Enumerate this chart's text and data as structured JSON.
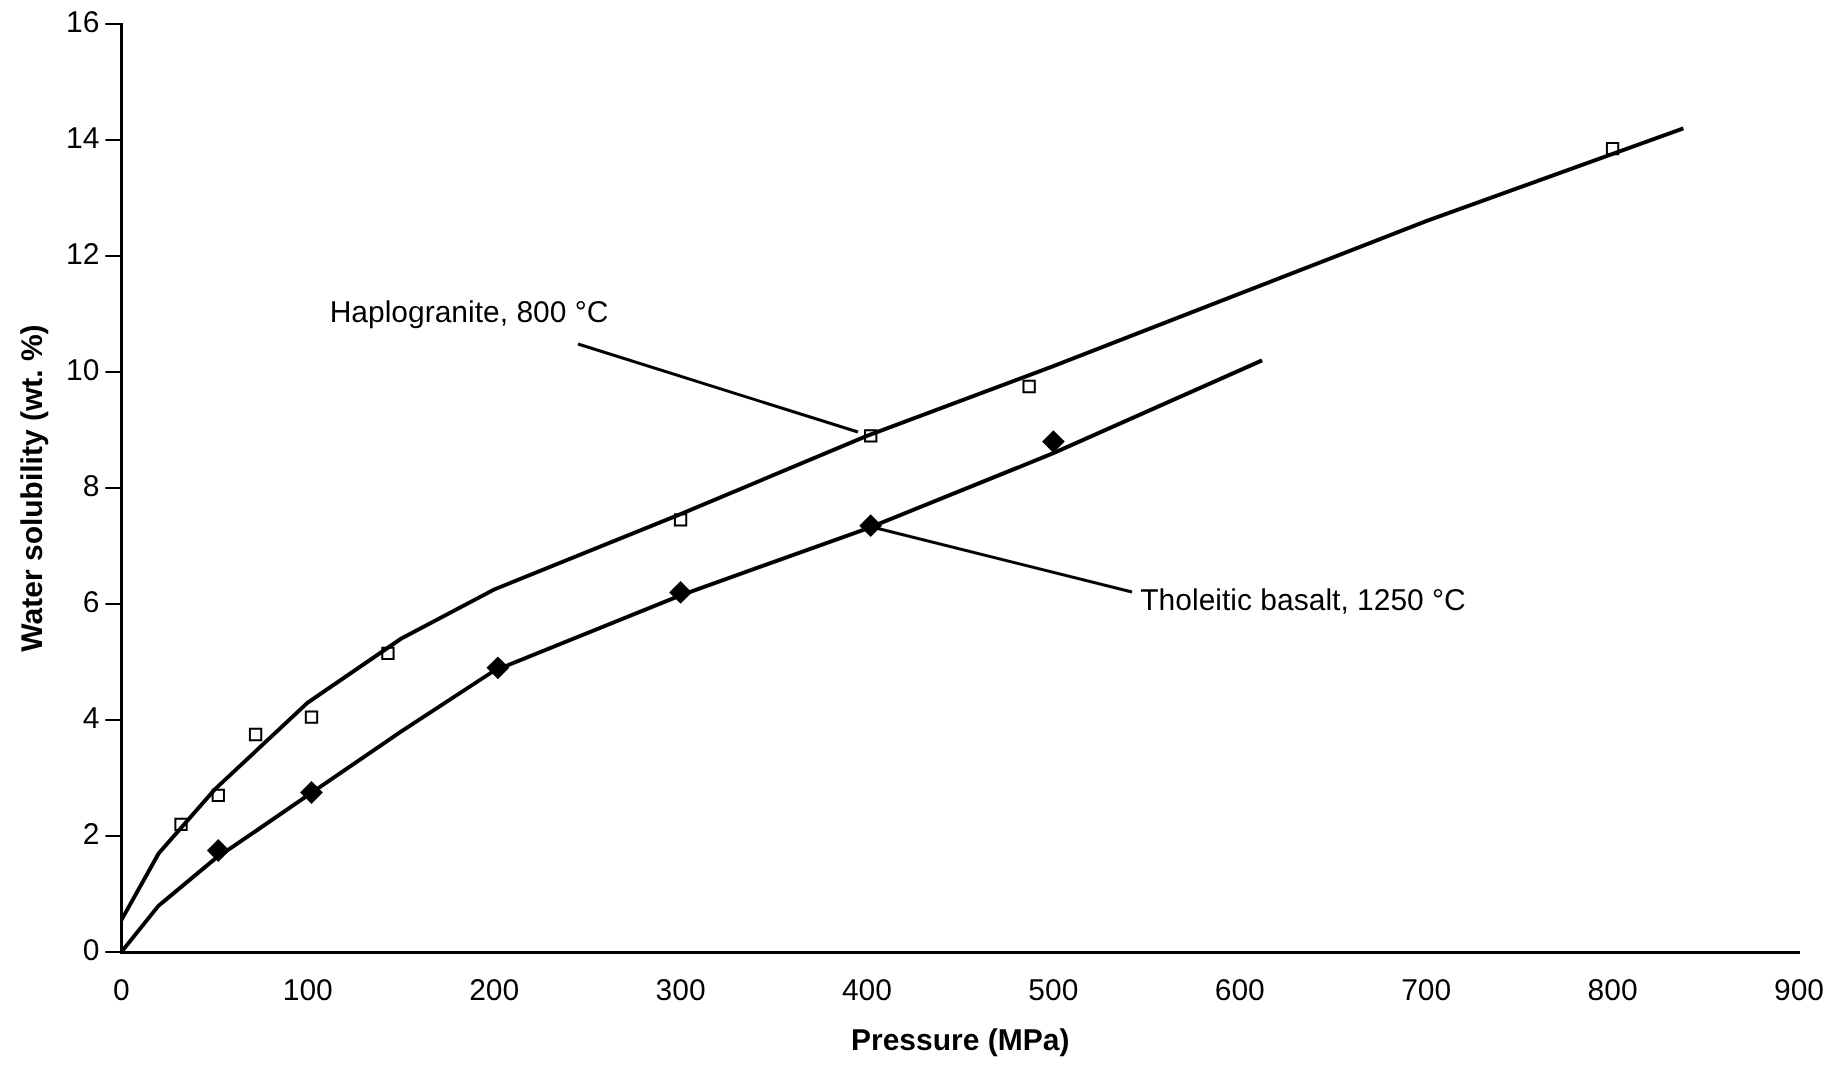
{
  "chart_data": {
    "type": "scatter",
    "xlabel": "Pressure (MPa)",
    "ylabel": "Water solubility (wt. %)",
    "xlim": [
      0,
      900
    ],
    "xticks": [
      0,
      100,
      200,
      300,
      400,
      500,
      600,
      700,
      800,
      900
    ],
    "ylim": [
      0,
      16
    ],
    "yticks": [
      0,
      2,
      4,
      6,
      8,
      10,
      12,
      14,
      16
    ],
    "grid": false,
    "legend": false,
    "series": [
      {
        "type": "line",
        "marker": "none",
        "color": "#000000",
        "x": [
          0,
          20,
          50,
          100,
          150,
          200,
          300,
          400,
          500,
          600,
          700,
          838
        ],
        "values": [
          0.55,
          1.7,
          2.8,
          4.3,
          5.4,
          6.25,
          7.55,
          8.9,
          10.1,
          11.35,
          12.6,
          14.2
        ]
      },
      {
        "type": "scatter",
        "marker": "square",
        "color": "#000000",
        "x": [
          32,
          52,
          72,
          102,
          143,
          300,
          402,
          487,
          800
        ],
        "values": [
          2.2,
          2.7,
          3.75,
          4.05,
          5.15,
          7.45,
          8.9,
          9.75,
          13.85
        ]
      },
      {
        "type": "line",
        "marker": "none",
        "color": "#000000",
        "x": [
          0,
          20,
          50,
          100,
          150,
          200,
          300,
          400,
          500,
          612
        ],
        "values": [
          0,
          0.8,
          1.6,
          2.7,
          3.8,
          4.85,
          6.15,
          7.3,
          8.6,
          10.2
        ]
      },
      {
        "type": "scatter",
        "marker": "diamond",
        "color": "#000000",
        "x": [
          52,
          102,
          202,
          300,
          402,
          500
        ],
        "values": [
          1.75,
          2.75,
          4.9,
          6.2,
          7.35,
          8.8
        ]
      }
    ],
    "annotations": [
      {
        "text": "Haplogranite, 800 °C",
        "x": 395,
        "y": 8.95
      },
      {
        "text": "Tholeitic basalt, 1250 °C",
        "x": 405,
        "y": 7.3
      }
    ]
  }
}
